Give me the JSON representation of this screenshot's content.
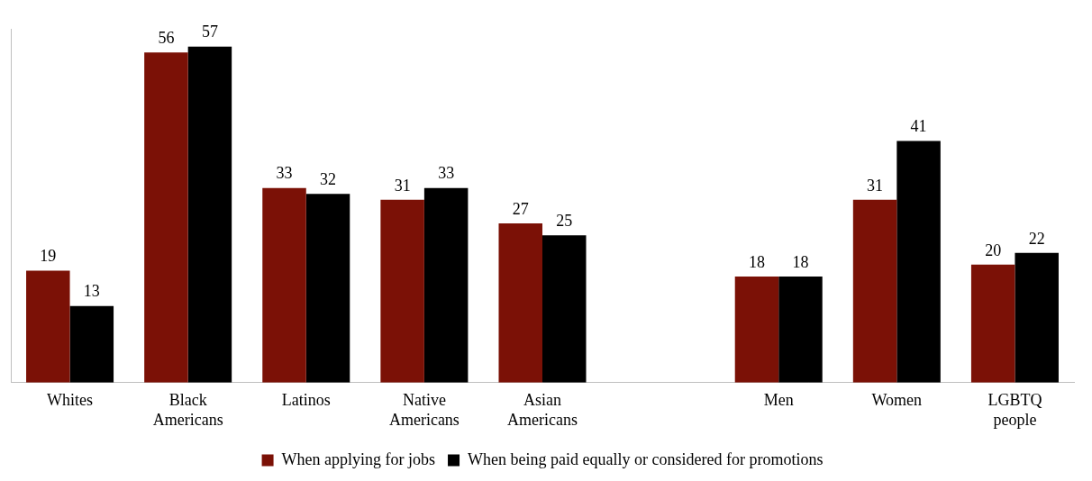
{
  "chart_data": {
    "type": "bar",
    "categories": [
      "Whites",
      "Black Americans",
      "Latinos",
      "Native Americans",
      "Asian Americans",
      null,
      "Men",
      "Women",
      "LGBTQ people"
    ],
    "series": [
      {
        "name": "When applying for jobs",
        "color": "#7b1106",
        "values": [
          19,
          56,
          33,
          31,
          27,
          null,
          18,
          31,
          20
        ]
      },
      {
        "name": "When being paid equally or considered for promotions",
        "color": "#000000",
        "values": [
          13,
          57,
          32,
          33,
          25,
          null,
          18,
          41,
          22
        ]
      }
    ],
    "ylim": [
      0,
      60
    ],
    "grid": false,
    "legend": "bottom",
    "data_labels": true,
    "tick_labels": "x"
  }
}
